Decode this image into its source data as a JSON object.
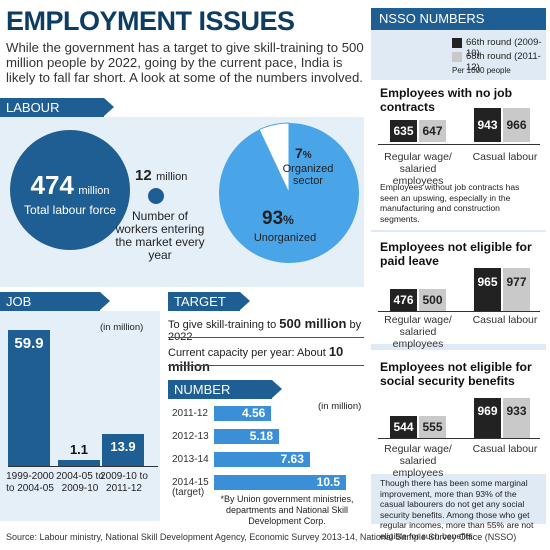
{
  "header": {
    "title": "EMPLOYMENT ISSUES",
    "intro": "While the government has a target to give skill-training to 500 million people by 2022, going by the current pace, India is likely to fall far short. A look at some of the numbers involved."
  },
  "labour_force": {
    "section_title": "LABOUR FORCE",
    "total_value": "474",
    "total_unit": "million",
    "total_label": "Total labour force",
    "entering_value": "12",
    "entering_unit": "million",
    "entering_label": "Number of workers entering the market every year",
    "pie": {
      "organized_pct": "7",
      "organized_label": "Organized sector",
      "unorganized_pct": "93",
      "unorganized_label": "Unorganized",
      "pct_symbol": "%",
      "organized_share": 0.07
    }
  },
  "job_creation": {
    "section_title": "JOB CREATION",
    "unit": "(in million)",
    "bars": [
      {
        "value": 59.9,
        "label": "59.9",
        "period": "1999-2000 to 2004-05"
      },
      {
        "value": 1.1,
        "label": "1.1",
        "period": "2004-05 to 2009-10"
      },
      {
        "value": 13.9,
        "label": "13.9",
        "period": "2009-10 to 2011-12"
      }
    ]
  },
  "target": {
    "section_title": "TARGET",
    "line1_prefix": "To give skill-training to",
    "line1_value": "500 million",
    "line1_suffix": "by 2022",
    "line2_prefix": "Current capacity per year: About",
    "line2_value": "10 million"
  },
  "number_trained": {
    "section_title": "NUMBER TRAINED",
    "asterisk": "*",
    "unit": "(in million)",
    "bars": [
      {
        "year": "2011-12",
        "value": 4.56,
        "label": "4.56"
      },
      {
        "year": "2012-13",
        "value": 5.18,
        "label": "5.18"
      },
      {
        "year": "2013-14",
        "value": 7.63,
        "label": "7.63"
      },
      {
        "year": "2014-15",
        "value": 10.5,
        "label": "10.5"
      }
    ],
    "target_note": "(target)",
    "footnote": "*By Union government ministries, departments and National Skill Development Corp."
  },
  "nsso": {
    "section_title": "NSSO NUMBERS",
    "legend": [
      {
        "label": "66th round (2009-10)",
        "color": "#222222"
      },
      {
        "label": "68th round (2011-12)",
        "color": "#c9c9c9"
      }
    ],
    "per_note": "Per 1000 people",
    "no_contracts": {
      "title": "Employees with no job contracts",
      "regular_66": "635",
      "regular_68": "647",
      "casual_66": "943",
      "casual_68": "966",
      "regular_label": "Regular wage/ salaried employees",
      "casual_label": "Casual labour",
      "note": "Employees without job contracts has seen an upswing, especially in the manufacturing and construction segments."
    },
    "paid_leave": {
      "title": "Employees not eligible for paid leave",
      "regular_66": "476",
      "regular_68": "500",
      "casual_66": "965",
      "casual_68": "977",
      "regular_label": "Regular wage/ salaried employees",
      "casual_label": "Casual labour"
    },
    "social_security": {
      "title": "Employees not eligible for social security benefits",
      "regular_66": "544",
      "regular_68": "555",
      "casual_66": "969",
      "casual_68": "933",
      "regular_label": "Regular wage/ salaried employees",
      "casual_label": "Casual labour",
      "note": "Though there has been some marginal improvement, more than 93% of the casual labourers do not get any social security benefits. Among those who get regular incomes, more than 55% are not eligible for such benefits."
    }
  },
  "source": "Source: Labour ministry, National Skill Development Agency, Economic Survey 2013-14, National Sample Survey Office (NSSO)"
}
